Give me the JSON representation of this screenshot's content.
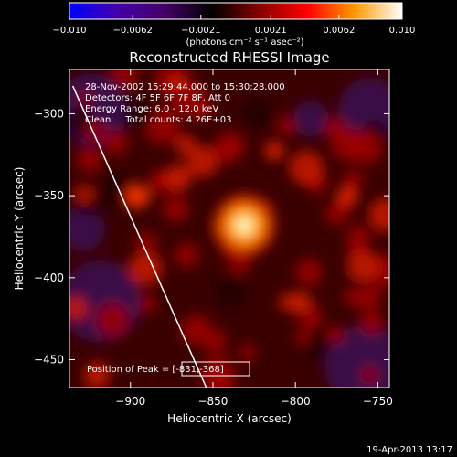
{
  "chart_data": {
    "type": "heatmap",
    "title": "Reconstructed RHESSI Image",
    "xlabel": "Heliocentric X (arcsec)",
    "ylabel": "Heliocentric Y (arcsec)",
    "xlim": [
      -937,
      -743
    ],
    "ylim": [
      -467,
      -273
    ],
    "x_ticks": [
      -900,
      -850,
      -800,
      -750
    ],
    "y_ticks": [
      -300,
      -350,
      -400,
      -450
    ],
    "x_tick_labels": [
      "−900",
      "−850",
      "−800",
      "−750"
    ],
    "y_tick_labels": [
      "−300",
      "−350",
      "−400",
      "−450"
    ],
    "colorbar": {
      "range": [
        -0.01,
        0.01
      ],
      "ticks": [
        -0.01,
        -0.0062,
        -0.0021,
        0.0021,
        0.0062,
        0.01
      ],
      "tick_labels": [
        "−0.010",
        "−0.0062",
        "−0.0021",
        "0.0021",
        "0.0062",
        "0.010"
      ],
      "unit_label": "(photons cm⁻² s⁻¹ asec⁻²)",
      "colors": [
        "#0000ff",
        "#4400aa",
        "#440066",
        "#000000",
        "#880000",
        "#ff0000",
        "#ff9900",
        "#ffffff"
      ]
    },
    "annotations": [
      "28-Nov-2002 15:29:44.000 to 15:30:28.000",
      "Detectors: 4F 5F 6F 7F 8F, Att 0",
      "Energy Range: 6.0 - 12.0 keV",
      "Clean     Total counts: 4.26E+03"
    ],
    "peak": {
      "label": "Position of Peak = [-831,-368]",
      "x": -831,
      "y": -368
    },
    "limb_line": [
      [
        -935,
        -283
      ],
      [
        -854,
        -467
      ]
    ],
    "timestamp": "19-Apr-2013 13:17"
  }
}
